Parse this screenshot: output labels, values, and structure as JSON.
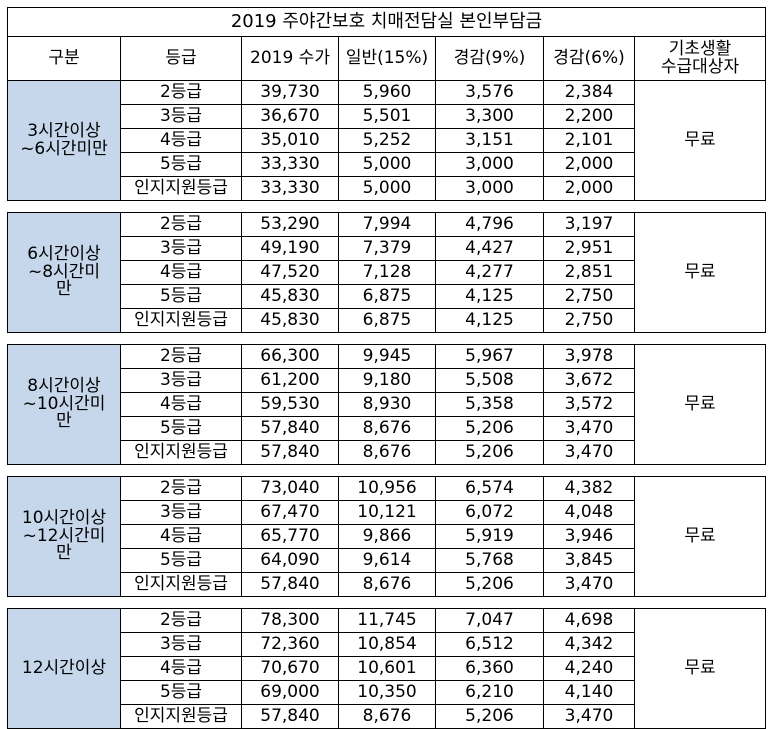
{
  "title": "2019 주야간보호 치매전담실 본인부담금",
  "headers": {
    "category": "구분",
    "grade": "등급",
    "fee_2019": "2019 수가",
    "general": "일반(15%)",
    "reduced_9": "경감(9%)",
    "reduced_6": "경감(6%)",
    "basic_recipient": "기초생활\n수급대상자"
  },
  "free_label": "무료",
  "groups": [
    {
      "label": "3시간이상\n~6시간미만",
      "rows": [
        {
          "grade": "2등급",
          "fee": "39,730",
          "general": "5,960",
          "r9": "3,576",
          "r6": "2,384"
        },
        {
          "grade": "3등급",
          "fee": "36,670",
          "general": "5,501",
          "r9": "3,300",
          "r6": "2,200"
        },
        {
          "grade": "4등급",
          "fee": "35,010",
          "general": "5,252",
          "r9": "3,151",
          "r6": "2,101"
        },
        {
          "grade": "5등급",
          "fee": "33,330",
          "general": "5,000",
          "r9": "3,000",
          "r6": "2,000"
        },
        {
          "grade": "인지지원등급",
          "fee": "33,330",
          "general": "5,000",
          "r9": "3,000",
          "r6": "2,000"
        }
      ]
    },
    {
      "label": "6시간이상\n~8시간미\n만",
      "rows": [
        {
          "grade": "2등급",
          "fee": "53,290",
          "general": "7,994",
          "r9": "4,796",
          "r6": "3,197"
        },
        {
          "grade": "3등급",
          "fee": "49,190",
          "general": "7,379",
          "r9": "4,427",
          "r6": "2,951"
        },
        {
          "grade": "4등급",
          "fee": "47,520",
          "general": "7,128",
          "r9": "4,277",
          "r6": "2,851"
        },
        {
          "grade": "5등급",
          "fee": "45,830",
          "general": "6,875",
          "r9": "4,125",
          "r6": "2,750"
        },
        {
          "grade": "인지지원등급",
          "fee": "45,830",
          "general": "6,875",
          "r9": "4,125",
          "r6": "2,750"
        }
      ]
    },
    {
      "label": "8시간이상\n~10시간미\n만",
      "rows": [
        {
          "grade": "2등급",
          "fee": "66,300",
          "general": "9,945",
          "r9": "5,967",
          "r6": "3,978"
        },
        {
          "grade": "3등급",
          "fee": "61,200",
          "general": "9,180",
          "r9": "5,508",
          "r6": "3,672"
        },
        {
          "grade": "4등급",
          "fee": "59,530",
          "general": "8,930",
          "r9": "5,358",
          "r6": "3,572"
        },
        {
          "grade": "5등급",
          "fee": "57,840",
          "general": "8,676",
          "r9": "5,206",
          "r6": "3,470"
        },
        {
          "grade": "인지지원등급",
          "fee": "57,840",
          "general": "8,676",
          "r9": "5,206",
          "r6": "3,470"
        }
      ]
    },
    {
      "label": "10시간이상\n~12시간미\n만",
      "rows": [
        {
          "grade": "2등급",
          "fee": "73,040",
          "general": "10,956",
          "r9": "6,574",
          "r6": "4,382"
        },
        {
          "grade": "3등급",
          "fee": "67,470",
          "general": "10,121",
          "r9": "6,072",
          "r6": "4,048"
        },
        {
          "grade": "4등급",
          "fee": "65,770",
          "general": "9,866",
          "r9": "5,919",
          "r6": "3,946"
        },
        {
          "grade": "5등급",
          "fee": "64,090",
          "general": "9,614",
          "r9": "5,768",
          "r6": "3,845"
        },
        {
          "grade": "인지지원등급",
          "fee": "57,840",
          "general": "8,676",
          "r9": "5,206",
          "r6": "3,470"
        }
      ]
    },
    {
      "label": "12시간이상",
      "rows": [
        {
          "grade": "2등급",
          "fee": "78,300",
          "general": "11,745",
          "r9": "7,047",
          "r6": "4,698"
        },
        {
          "grade": "3등급",
          "fee": "72,360",
          "general": "10,854",
          "r9": "6,512",
          "r6": "4,342"
        },
        {
          "grade": "4등급",
          "fee": "70,670",
          "general": "10,601",
          "r9": "6,360",
          "r6": "4,240"
        },
        {
          "grade": "5등급",
          "fee": "69,000",
          "general": "10,350",
          "r9": "6,210",
          "r6": "4,140"
        },
        {
          "grade": "인지지원등급",
          "fee": "57,840",
          "general": "8,676",
          "r9": "5,206",
          "r6": "3,470"
        }
      ]
    }
  ],
  "colors": {
    "group_cell_bg": "#c6d7ec",
    "border": "#000000",
    "background": "#ffffff"
  }
}
